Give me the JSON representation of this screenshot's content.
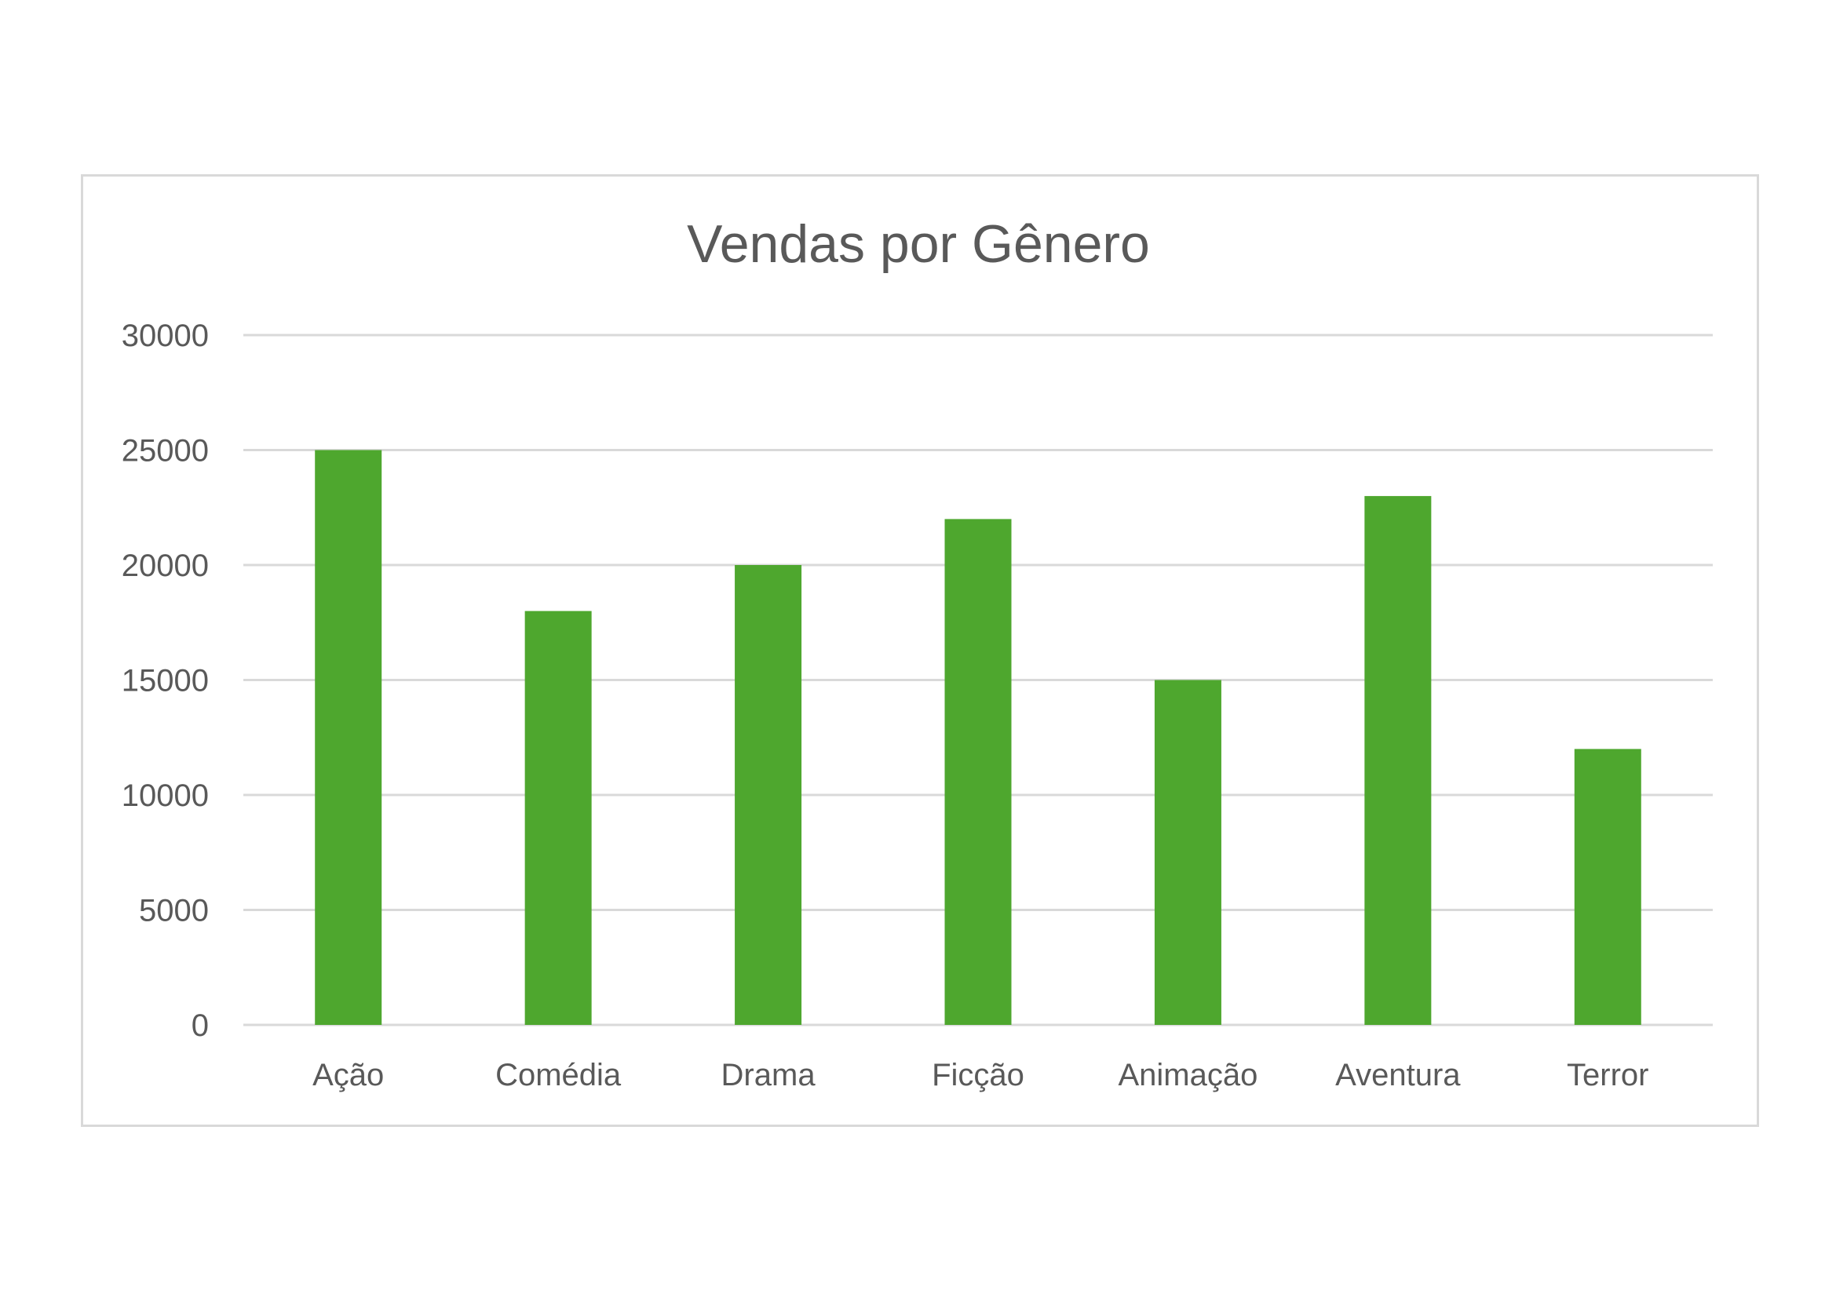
{
  "chart_data": {
    "type": "bar",
    "title": "Vendas por Gênero",
    "xlabel": "",
    "ylabel": "",
    "categories": [
      "Ação",
      "Comédia",
      "Drama",
      "Ficção",
      "Animação",
      "Aventura",
      "Terror"
    ],
    "values": [
      25000,
      18000,
      20000,
      22000,
      15000,
      23000,
      12000
    ],
    "ylim": [
      0,
      30000
    ],
    "yticks": [
      "0",
      "5000",
      "10000",
      "15000",
      "20000",
      "25000",
      "30000"
    ],
    "grid": true,
    "legend": "none",
    "bar_color": "#4ea72e",
    "grid_color": "#d9d9d9",
    "text_color": "#595959"
  }
}
